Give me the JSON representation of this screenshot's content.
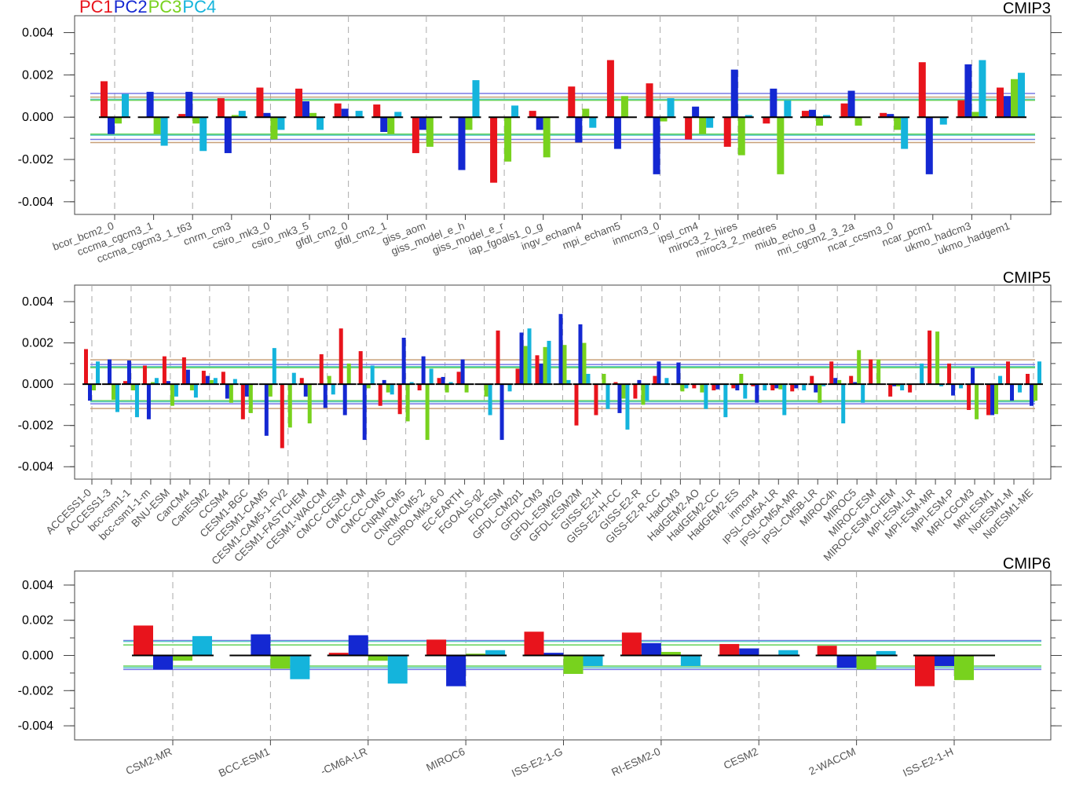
{
  "legend": [
    {
      "name": "PC1",
      "color": "#e8141c"
    },
    {
      "name": "PC2",
      "color": "#1428d2"
    },
    {
      "name": "PC3",
      "color": "#78d21e"
    },
    {
      "name": "PC4",
      "color": "#14b4dc"
    }
  ],
  "chart_data": [
    {
      "type": "bar",
      "title": "CMIP3",
      "ylabel": "",
      "ylim": [
        -0.0046,
        0.0048
      ],
      "yticks": [
        "0.004",
        "0.002",
        "0.000",
        "-0.002",
        "-0.004"
      ],
      "yticks_values": [
        0.004,
        0.002,
        0.0,
        -0.002,
        -0.004
      ],
      "categories": [
        "bcor_bcm2_0",
        "cccma_cgcm3_1",
        "cccma_cgcm3_1_t63",
        "cnrm_cm3",
        "csiro_mk3_0",
        "csiro_mk3_5",
        "gfdl_cm2_0",
        "gfdl_cm2_1",
        "giss_aom",
        "giss_model_e_h",
        "giss_model_e_r",
        "iap_fgoals1_0_g",
        "ingv_echam4",
        "mpi_echam5",
        "inmcm3_0",
        "ipsl_cm4",
        "miroc3_2_hires",
        "miroc3_2_medres",
        "miub_echo_g",
        "mri_cgcm2_3_2a",
        "ncar_ccsm3_0",
        "ncar_pcm1",
        "ukmo_hadcm3",
        "ukmo_hadgem1"
      ],
      "series": [
        {
          "name": "PC1",
          "values": [
            0.0017,
            0.0,
            0.00015,
            0.0009,
            0.0014,
            0.00135,
            0.00065,
            0.0006,
            -0.0017,
            0.0,
            -0.0031,
            0.0003,
            0.00145,
            0.0027,
            0.0016,
            -0.00105,
            -0.0014,
            -0.0003,
            0.0003,
            0.00065,
            0.0002,
            0.0026,
            0.0008,
            0.0014
          ]
        },
        {
          "name": "PC2",
          "values": [
            -0.0008,
            0.0012,
            0.0012,
            -0.0017,
            0.0002,
            0.00075,
            0.0004,
            -0.0007,
            -0.0006,
            -0.0025,
            0.0,
            -0.0006,
            -0.0012,
            -0.0015,
            -0.0027,
            0.0005,
            0.00225,
            0.00135,
            0.00035,
            0.00125,
            0.00015,
            -0.0027,
            0.0025,
            0.001
          ]
        },
        {
          "name": "PC3",
          "values": [
            -0.0003,
            -0.0008,
            -0.0003,
            0.0001,
            -0.00105,
            0.0002,
            0.0,
            -0.0008,
            -0.0014,
            -0.0006,
            -0.0021,
            -0.0019,
            0.0004,
            0.001,
            -0.0002,
            -0.0008,
            -0.0018,
            -0.0027,
            -0.0004,
            -0.0004,
            -0.0006,
            0.0,
            0.00025,
            0.0018
          ]
        },
        {
          "name": "PC4",
          "values": [
            0.0011,
            -0.00135,
            -0.0016,
            0.0003,
            -0.0006,
            -0.0006,
            0.0003,
            0.00025,
            0.0,
            0.00175,
            0.00055,
            0.0,
            -0.0005,
            0.0,
            0.0009,
            -0.0005,
            0.0001,
            0.0008,
            0.0001,
            0.0,
            -0.0015,
            -0.00035,
            0.0027,
            0.0021
          ]
        }
      ],
      "reference_lines": [
        0.00112,
        0.00095,
        0.00085,
        0.0008,
        -0.0008,
        -0.00085,
        -0.00105,
        -0.0012
      ],
      "reference_colors": [
        "#7878e6",
        "#c8a078",
        "#5ac8c8",
        "#64d25a",
        "#64d25a",
        "#5ac8c8",
        "#7878e6",
        "#c8a078"
      ],
      "grid": "vertical dashed every 2 categories"
    },
    {
      "type": "bar",
      "title": "CMIP5",
      "ylabel": "",
      "ylim": [
        -0.0046,
        0.0048
      ],
      "yticks": [
        "0.004",
        "0.002",
        "0.000",
        "-0.002",
        "-0.004"
      ],
      "yticks_values": [
        0.004,
        0.002,
        0.0,
        -0.002,
        -0.004
      ],
      "categories": [
        "ACCESS1-0",
        "ACCESS1-3",
        "bcc-csm1-1",
        "bcc-csm1-1-m",
        "BNU-ESM",
        "CanCM4",
        "CanESM2",
        "CCSM4",
        "CESM1-BGC",
        "CESM1-CAM5",
        "CESM1-CAM5-1-FV2",
        "CESM1-FASTCHEM",
        "CESM1-WACCM",
        "CMCC-CESM",
        "CMCC-CM",
        "CMCC-CMS",
        "CNRM-CM5",
        "CNRM-CM5-2",
        "CSIRO-Mk3-6-0",
        "EC-EARTH",
        "FGOALS-g2",
        "FIO-ESM",
        "GFDL-CM2p1",
        "GFDL-CM3",
        "GFDL-ESM2G",
        "GFDL-ESM2M",
        "GISS-E2-H",
        "GISS-E2-H-CC",
        "GISS-E2-R",
        "GISS-E2-R-CC",
        "HadCM3",
        "HadGEM2-AO",
        "HadGEM2-CC",
        "HadGEM2-ES",
        "inmcm4",
        "IPSL-CM5A-LR",
        "IPSL-CM5A-MR",
        "IPSL-CM5B-LR",
        "MIROC4h",
        "MIROC5",
        "MIROC-ESM",
        "MIROC-ESM-CHEM",
        "MPI-ESM-LR",
        "MPI-ESM-MR",
        "MPI-ESM-P",
        "MRI-CGCM3",
        "MRI-ESM1",
        "NorESM1-M",
        "NorESM1-ME"
      ],
      "series": [
        {
          "name": "PC1",
          "values": [
            0.0017,
            0.0,
            0.00015,
            0.0009,
            0.00135,
            0.0013,
            0.00065,
            0.0006,
            -0.0017,
            0.0,
            -0.0031,
            0.0003,
            0.00145,
            0.0027,
            0.0016,
            -0.00105,
            -0.00145,
            -0.0003,
            0.0003,
            0.0006,
            0.0,
            0.0026,
            0.00075,
            0.0014,
            0.0,
            -0.002,
            -0.0015,
            0.0001,
            -0.0007,
            0.0004,
            0.0,
            -0.0002,
            -0.0003,
            -0.0002,
            -0.0001,
            -0.0003,
            -0.00035,
            0.0004,
            0.0011,
            0.0004,
            0.0012,
            -0.0006,
            -0.0004,
            0.0026,
            0.001,
            -0.00125,
            -0.0015,
            0.0011,
            0.0005
          ]
        },
        {
          "name": "PC2",
          "values": [
            -0.0008,
            0.0012,
            0.00115,
            -0.0017,
            0.00015,
            0.0007,
            0.0004,
            -0.0007,
            -0.0006,
            -0.0025,
            0.0,
            -0.0006,
            -0.00115,
            -0.0015,
            -0.0027,
            0.0002,
            0.00225,
            0.00135,
            0.00035,
            0.0012,
            0.0,
            -0.0027,
            0.0025,
            0.001,
            0.0034,
            0.0029,
            0.0,
            -0.0014,
            0.0002,
            0.0011,
            0.00105,
            0.0,
            -0.00025,
            -0.0003,
            -0.0009,
            -0.0002,
            -0.0002,
            -0.0004,
            0.0003,
            0.0001,
            0.0,
            -0.0001,
            0.0,
            0.0,
            -0.00055,
            0.0008,
            -0.0015,
            -0.0008,
            -0.00105
          ]
        },
        {
          "name": "PC3",
          "values": [
            -0.0003,
            -0.00075,
            -0.0003,
            0.0001,
            -0.00105,
            -0.0003,
            0.0002,
            -0.0009,
            -0.0014,
            -0.0006,
            -0.0021,
            -0.0019,
            0.0004,
            0.001,
            -0.0002,
            -0.0004,
            -0.0018,
            -0.0027,
            -0.0004,
            -0.0004,
            -0.0006,
            0.0,
            0.00185,
            0.0018,
            0.0019,
            0.002,
            0.0005,
            -0.0007,
            -0.001,
            0.0,
            -0.00035,
            -0.0004,
            0.0,
            0.0005,
            0.0,
            -0.00025,
            0.0,
            -0.0009,
            0.0002,
            0.00165,
            0.0012,
            -0.0001,
            0.0,
            0.00255,
            0.0,
            -0.0017,
            -0.00145,
            0.0,
            -0.0008
          ]
        },
        {
          "name": "PC4",
          "values": [
            0.0011,
            -0.00135,
            -0.0016,
            0.0003,
            -0.0006,
            -0.00065,
            0.0003,
            0.00025,
            0.0,
            0.00175,
            0.00055,
            0.0,
            -0.0005,
            0.0,
            0.0009,
            -0.0005,
            0.0001,
            0.00075,
            0.0001,
            0.0,
            -0.0015,
            -0.00035,
            0.0027,
            0.0021,
            0.0002,
            0.0005,
            -0.0012,
            -0.0022,
            -0.0008,
            0.0003,
            -0.0002,
            -0.0012,
            -0.0016,
            -0.0007,
            -0.0003,
            -0.0015,
            -0.0003,
            -0.0001,
            -0.0019,
            -0.0009,
            0.0,
            -0.0003,
            0.001,
            -0.0001,
            -0.0002,
            0.0,
            0.0004,
            -0.0004,
            0.0011
          ]
        }
      ],
      "reference_lines": [
        0.00118,
        0.00095,
        0.00085,
        0.0008,
        -0.0008,
        -0.00085,
        -0.00095,
        -0.00118
      ],
      "reference_colors": [
        "#c8a078",
        "#7878e6",
        "#5ac8c8",
        "#64d25a",
        "#64d25a",
        "#5ac8c8",
        "#7878e6",
        "#c8a078"
      ],
      "grid": "vertical dashed every 2 categories"
    },
    {
      "type": "bar",
      "title": "CMIP6",
      "ylabel": "",
      "ylim": [
        -0.0048,
        0.0048
      ],
      "yticks": [
        "0.004",
        "0.002",
        "0.000",
        "-0.002",
        "-0.004"
      ],
      "yticks_values": [
        0.004,
        0.002,
        0.0,
        -0.002,
        -0.004
      ],
      "categories": [
        "CSM2-MR",
        "BCC-ESM1",
        "-CM6A-LR",
        "MIROC6",
        "ISS-E2-1-G",
        "RI-ESM2-0",
        "CESM2",
        "2-WACCM",
        "ISS-E2-1-H"
      ],
      "series": [
        {
          "name": "PC1",
          "values": [
            0.0017,
            0.0,
            0.00015,
            0.0009,
            0.00135,
            0.0013,
            0.00065,
            0.00055,
            -0.00175
          ]
        },
        {
          "name": "PC2",
          "values": [
            -0.0008,
            0.0012,
            0.00115,
            -0.00175,
            0.00015,
            0.0007,
            0.0004,
            -0.0007,
            -0.0006
          ]
        },
        {
          "name": "PC3",
          "values": [
            -0.0003,
            -0.00075,
            -0.0003,
            0.0001,
            -0.00105,
            0.0002,
            0.0,
            -0.0008,
            -0.0014
          ]
        },
        {
          "name": "PC4",
          "values": [
            0.0011,
            -0.00135,
            -0.0016,
            0.0003,
            -0.0006,
            -0.0006,
            0.0003,
            0.00025,
            0.0
          ]
        }
      ],
      "reference_lines": [
        0.00085,
        0.0008,
        0.0006,
        -0.0006,
        -0.0007,
        -0.0008
      ],
      "reference_colors": [
        "#7878e6",
        "#5ac8c8",
        "#64d25a",
        "#64d25a",
        "#5ac8c8",
        "#7878e6"
      ],
      "grid": "vertical dashed every category"
    }
  ]
}
